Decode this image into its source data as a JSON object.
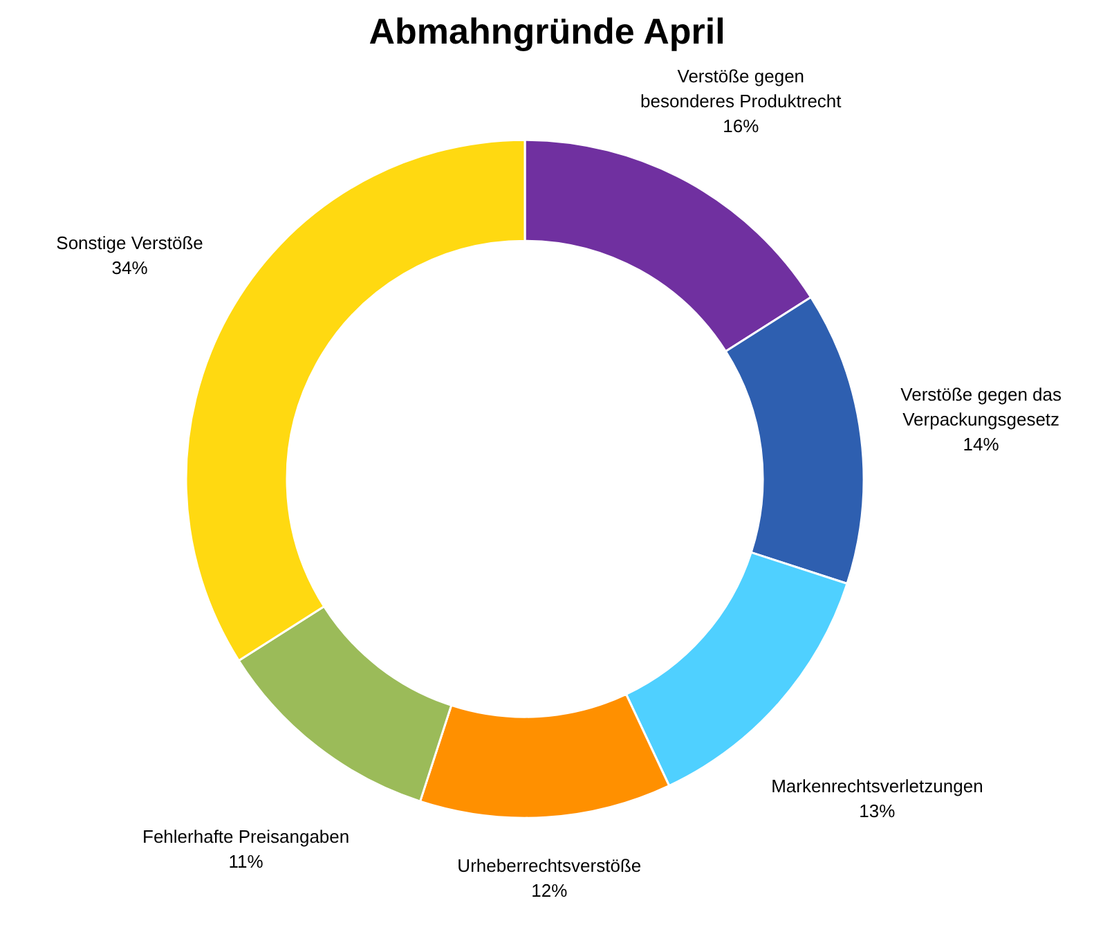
{
  "chart_data": {
    "type": "donut",
    "title": "Abmahngründe April",
    "categories": [
      "Verstöße gegen besonderes Produktrecht",
      "Verstöße gegen das Verpackungsgesetz",
      "Markenrechtsverletzungen",
      "Urheberrechtsverstöße",
      "Fehlerhafte Preisangaben",
      "Sonstige Verstöße"
    ],
    "values": [
      16,
      14,
      13,
      12,
      11,
      34
    ],
    "value_labels": [
      "16%",
      "14%",
      "13%",
      "12%",
      "11%",
      "34%"
    ],
    "colors": [
      "#7030a0",
      "#2e5fb0",
      "#4fd0ff",
      "#ff9000",
      "#9bbb59",
      "#ffd911"
    ]
  }
}
